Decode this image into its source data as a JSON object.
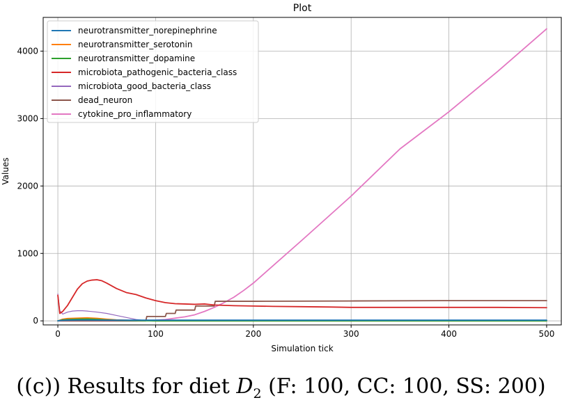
{
  "chart_data": {
    "type": "line",
    "title": "Plot",
    "xlabel": "Simulation tick",
    "ylabel": "Values",
    "xlim": [
      -15,
      515
    ],
    "ylim": [
      -60,
      4500
    ],
    "xticks": [
      0,
      100,
      200,
      300,
      400,
      500
    ],
    "yticks": [
      0,
      1000,
      2000,
      3000,
      4000
    ],
    "grid": true,
    "legend_position": "top-left",
    "series": [
      {
        "name": "neurotransmitter_norepinephrine",
        "color": "#1f77b4",
        "x": [
          0,
          2,
          5,
          10,
          20,
          30,
          40,
          60,
          100,
          200,
          300,
          400,
          500
        ],
        "y": [
          0,
          5,
          8,
          10,
          12,
          12,
          11,
          10,
          10,
          10,
          10,
          10,
          10
        ]
      },
      {
        "name": "neurotransmitter_serotonin",
        "color": "#ff7f0e",
        "x": [
          0,
          5,
          10,
          20,
          30,
          40,
          50,
          60,
          80,
          100,
          200,
          300,
          400,
          500
        ],
        "y": [
          0,
          25,
          35,
          40,
          45,
          38,
          25,
          15,
          5,
          0,
          0,
          0,
          0,
          0
        ]
      },
      {
        "name": "neurotransmitter_dopamine",
        "color": "#2ca02c",
        "x": [
          0,
          5,
          10,
          20,
          30,
          40,
          50,
          60,
          80,
          100,
          200,
          300,
          400,
          500
        ],
        "y": [
          0,
          15,
          20,
          25,
          28,
          22,
          15,
          8,
          3,
          0,
          0,
          0,
          0,
          0
        ]
      },
      {
        "name": "microbiota_pathogenic_bacteria_class",
        "color": "#d62728",
        "x": [
          0,
          2,
          5,
          10,
          15,
          20,
          25,
          30,
          35,
          40,
          45,
          50,
          60,
          70,
          80,
          90,
          100,
          110,
          120,
          130,
          140,
          150,
          160,
          180,
          200,
          220,
          250,
          280,
          300,
          350,
          400,
          450,
          500
        ],
        "y": [
          380,
          110,
          140,
          230,
          350,
          470,
          550,
          590,
          605,
          610,
          595,
          560,
          480,
          420,
          390,
          340,
          300,
          270,
          255,
          250,
          245,
          250,
          235,
          225,
          220,
          215,
          210,
          205,
          200,
          200,
          200,
          200,
          195
        ]
      },
      {
        "name": "microbiota_good_bacteria_class",
        "color": "#9467bd",
        "x": [
          0,
          2,
          5,
          10,
          15,
          20,
          25,
          30,
          40,
          50,
          60,
          70,
          80,
          90,
          100,
          200,
          300,
          400,
          500
        ],
        "y": [
          400,
          150,
          100,
          130,
          145,
          150,
          150,
          145,
          130,
          110,
          80,
          50,
          20,
          5,
          0,
          0,
          0,
          0,
          0
        ]
      },
      {
        "name": "dead_neuron",
        "color": "#8c564b",
        "x": [
          0,
          90,
          91,
          110,
          111,
          120,
          121,
          140,
          141,
          160,
          161,
          200,
          300,
          400,
          500
        ],
        "y": [
          0,
          0,
          65,
          65,
          110,
          110,
          160,
          160,
          220,
          220,
          290,
          290,
          295,
          300,
          300
        ]
      },
      {
        "name": "cytokine_pro_inflammatory",
        "color": "#e377c2",
        "x": [
          0,
          40,
          80,
          90,
          100,
          110,
          120,
          130,
          140,
          150,
          160,
          170,
          180,
          190,
          200,
          250,
          300,
          350,
          400,
          450,
          500
        ],
        "y": [
          0,
          0,
          0,
          5,
          10,
          20,
          40,
          60,
          90,
          140,
          200,
          270,
          350,
          450,
          560,
          1200,
          1850,
          2550,
          3100,
          3700,
          4330
        ]
      }
    ]
  },
  "caption": {
    "prefix": "((c)) Results for diet ",
    "var_main": "D",
    "var_sub": "2",
    "suffix": " (F: 100, CC: 100, SS: 200)"
  }
}
